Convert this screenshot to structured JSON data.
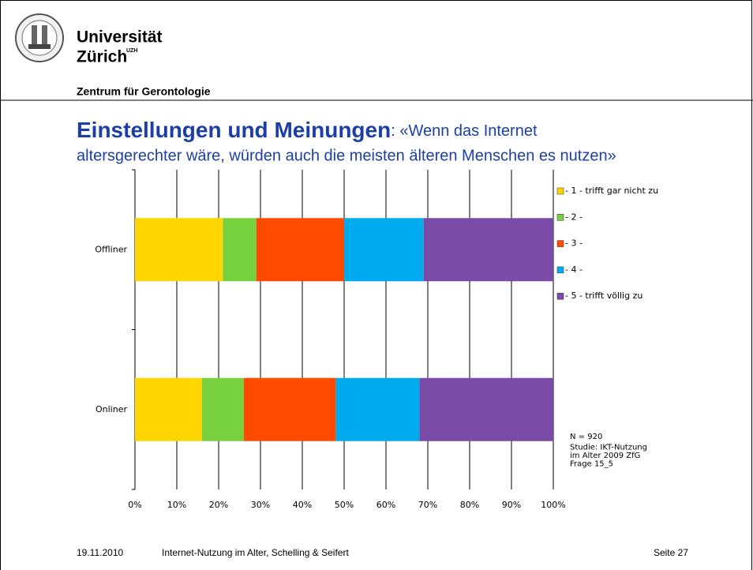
{
  "header": {
    "university": [
      "Universität",
      "Zürich"
    ],
    "superscript": "UZH",
    "department": "Zentrum für Gerontologie"
  },
  "chart_data": {
    "type": "bar",
    "orientation": "horizontal",
    "stacked": true,
    "title": "Einstellungen und Meinungen",
    "subtitle": [
      ": «Wenn das Internet",
      "altersgerechter wäre, würden auch die meisten älteren Menschen es nutzen»"
    ],
    "categories": [
      "Offliner",
      "Onliner"
    ],
    "series": [
      {
        "name": "- 1 - trifft gar nicht zu",
        "color": "#ffd600",
        "values": [
          21,
          16
        ]
      },
      {
        "name": "- 2 -",
        "color": "#77d13f",
        "values": [
          8,
          10
        ]
      },
      {
        "name": "- 3 -",
        "color": "#ff4a00",
        "values": [
          21,
          22
        ]
      },
      {
        "name": "- 4 -",
        "color": "#00aaee",
        "values": [
          19,
          20
        ]
      },
      {
        "name": "- 5 - trifft völlig zu",
        "color": "#7b4ba8",
        "values": [
          31,
          32
        ]
      }
    ],
    "xlim": [
      0,
      100
    ],
    "xticks": [
      {
        "value": 0,
        "label": "0%"
      },
      {
        "value": 10,
        "label": "10%"
      },
      {
        "value": 20,
        "label": "20%"
      },
      {
        "value": 30,
        "label": "30%"
      },
      {
        "value": 40,
        "label": "40%"
      },
      {
        "value": 50,
        "label": "50%"
      },
      {
        "value": 60,
        "label": "60%"
      },
      {
        "value": 70,
        "label": "70%"
      },
      {
        "value": 80,
        "label": "80%"
      },
      {
        "value": 90,
        "label": "90%"
      },
      {
        "value": 100,
        "label": "100%"
      }
    ],
    "grid": true,
    "legend": "right",
    "annotation": [
      "N = 920",
      "Studie: IKT-Nutzung",
      "im Alter 2009 ZfG",
      "Frage 15_5"
    ]
  },
  "footer": {
    "date": "19.11.2010",
    "text": "Internet-Nutzung im Alter, Schelling & Seifert",
    "page": "Seite 27"
  }
}
